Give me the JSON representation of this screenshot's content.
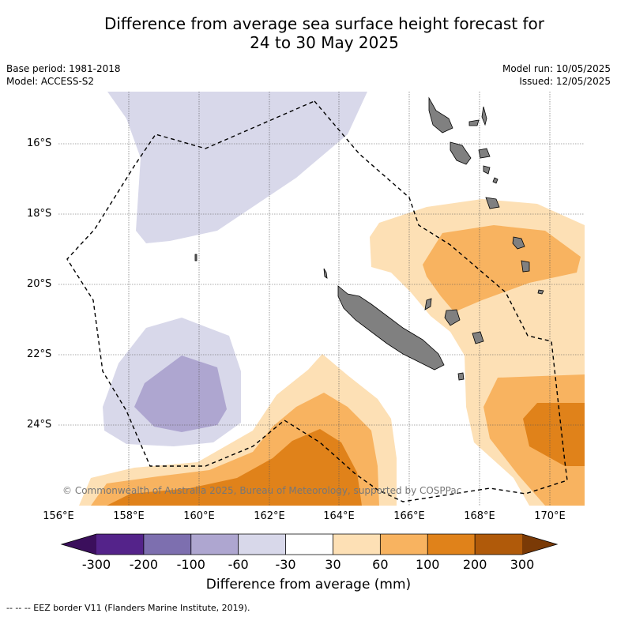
{
  "title_line1": "Difference from average sea surface height forecast for",
  "title_line2": "24 to 30 May 2025",
  "meta_left": [
    "Base period: 1981-2018",
    "Model: ACCESS-S2"
  ],
  "meta_right": [
    "Model run: 10/05/2025",
    "Issued: 12/05/2025"
  ],
  "lat_labels": [
    "16°S",
    "18°S",
    "20°S",
    "22°S",
    "24°S"
  ],
  "lon_labels": [
    "156°E",
    "158°E",
    "160°E",
    "162°E",
    "164°E",
    "166°E",
    "168°E",
    "170°E"
  ],
  "copyright": "© Commonwealth of Australia 2025, Bureau of Meteorology, supported by COSPPac",
  "colorbar": {
    "ticks": [
      "-300",
      "-200",
      "-100",
      "-60",
      "-30",
      "30",
      "60",
      "100",
      "200",
      "300"
    ],
    "colors": [
      "#3b0f5c",
      "#54238a",
      "#7d6faf",
      "#aea6d0",
      "#d8d8ea",
      "#ffffff",
      "#fde0b5",
      "#f8b360",
      "#e0821a",
      "#b05a0a",
      "#7a3a06"
    ],
    "label": "Difference from average (mm)"
  },
  "footer": "--  --  -- EEZ border V11 (Flanders Marine Institute, 2019)."
}
